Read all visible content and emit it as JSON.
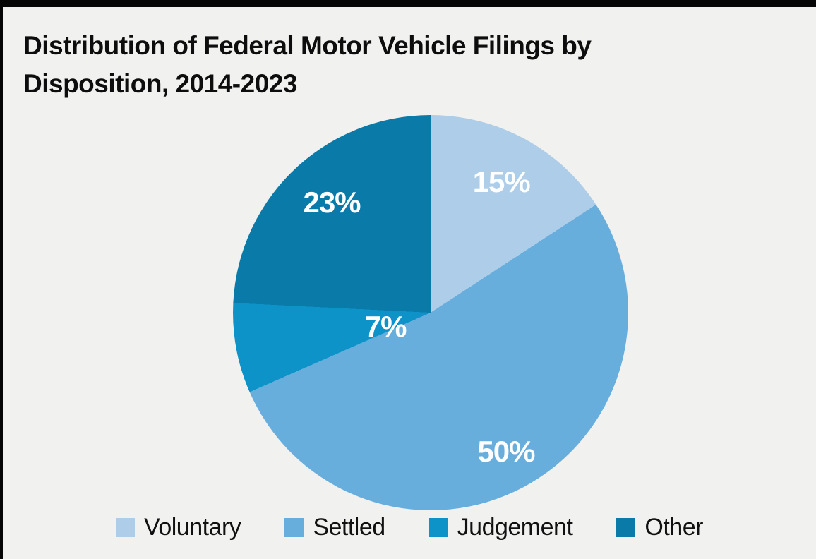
{
  "title": "Distribution of Federal Motor Vehicle Filings by Disposition, 2014-2023",
  "page": {
    "background": "#F1F1EF",
    "border_color": "#060606",
    "title_color": "#0d0d0d"
  },
  "chart_data": {
    "type": "pie",
    "title": "Distribution of Federal Motor Vehicle Filings by Disposition, 2014-2023",
    "categories": [
      "Voluntary",
      "Settled",
      "Judgement",
      "Other"
    ],
    "values": [
      15,
      50,
      7,
      23
    ],
    "unit": "percent",
    "slice_labels": [
      "15%",
      "50%",
      "7%",
      "23%"
    ],
    "colors": [
      "#AECDE8",
      "#68AEDC",
      "#0E93C8",
      "#0A7AA8"
    ],
    "slice_label_color": "#FFFFFF",
    "start_angle_deg": 0,
    "direction": "clockwise",
    "legend_position": "bottom"
  },
  "legend": {
    "items": [
      {
        "label": "Voluntary",
        "color": "#AECDE8"
      },
      {
        "label": "Settled",
        "color": "#68AEDC"
      },
      {
        "label": "Judgement",
        "color": "#0E93C8"
      },
      {
        "label": "Other",
        "color": "#0A7AA8"
      }
    ]
  }
}
